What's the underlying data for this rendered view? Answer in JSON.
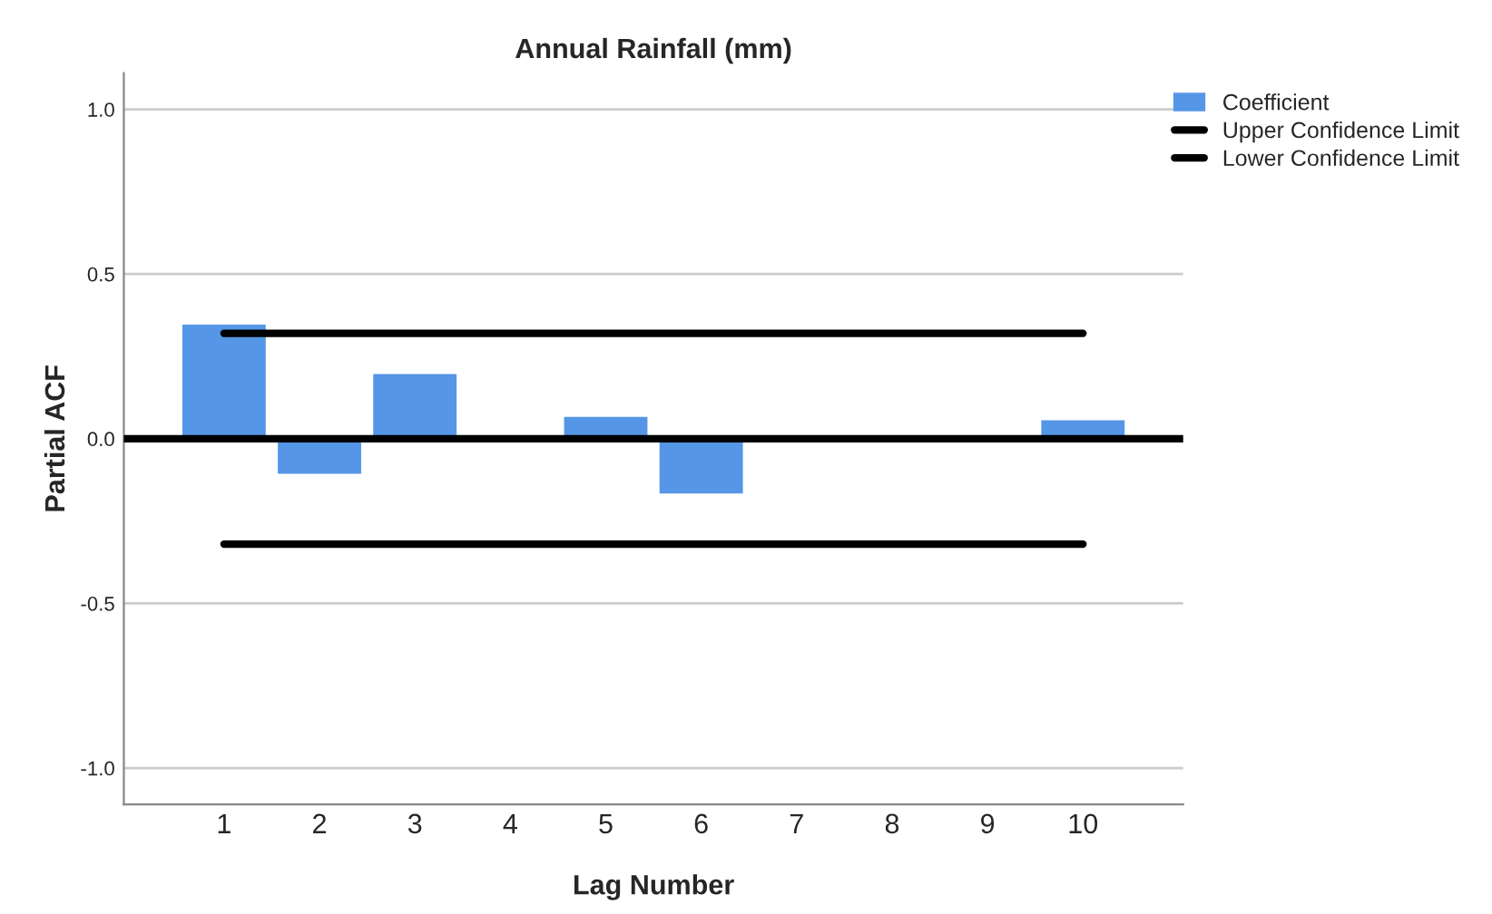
{
  "chart_data": {
    "type": "bar",
    "title": "Annual Rainfall (mm)",
    "xlabel": "Lag Number",
    "ylabel": "Partial ACF",
    "categories": [
      "1",
      "2",
      "3",
      "4",
      "5",
      "6",
      "7",
      "8",
      "9",
      "10"
    ],
    "series": [
      {
        "name": "Coefficient",
        "color": "#5596e6",
        "values": [
          0.35,
          -0.11,
          0.2,
          null,
          0.07,
          -0.17,
          null,
          null,
          null,
          0.06
        ]
      },
      {
        "name": "Upper Confidence Limit",
        "type": "line",
        "color": "#000000",
        "values": [
          0.32,
          0.32,
          0.32,
          0.32,
          0.32,
          0.32,
          0.32,
          0.32,
          0.32,
          0.32
        ]
      },
      {
        "name": "Lower Confidence Limit",
        "type": "line",
        "color": "#000000",
        "values": [
          -0.32,
          -0.32,
          -0.32,
          -0.32,
          -0.32,
          -0.32,
          -0.32,
          -0.32,
          -0.32,
          -0.32
        ]
      }
    ],
    "ref_lines": [
      {
        "axis": "y",
        "value": 0,
        "color": "#000000"
      }
    ],
    "ylim": [
      -1.11,
      1.11
    ],
    "yticks": [
      {
        "value": -1,
        "label": "-1.0"
      },
      {
        "value": -0.5,
        "label": "-0.5"
      },
      {
        "value": 0,
        "label": "0.0"
      },
      {
        "value": 0.5,
        "label": "0.5"
      },
      {
        "value": 1,
        "label": "1.0"
      }
    ],
    "grid": "y",
    "legend": "top right",
    "marker": "none",
    "line_style": "solid"
  }
}
